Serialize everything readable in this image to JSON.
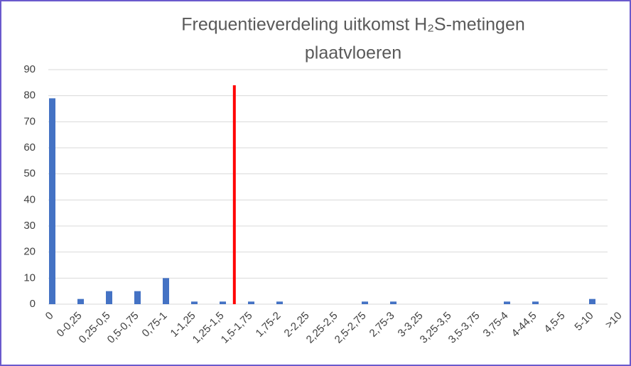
{
  "chart_data": {
    "type": "bar",
    "title": [
      "Frequentieverdeling uitkomst H₂S-metingen",
      "plaatvloeren"
    ],
    "categories": [
      "0",
      "0-0,25",
      "0,25-0,5",
      "0,5-0,75",
      "0,75-1",
      "1-1,25",
      "1,25-1,5",
      "1,5-1,75",
      "1,75-2",
      "2-2,25",
      "2,25-2,5",
      "2,5-2,75",
      "2,75-3",
      "3-3,25",
      "3,25-3,5",
      "3,5-3,75",
      "3,75-4",
      "4-44,5",
      "4,5-5",
      "5-10",
      ">10"
    ],
    "values": [
      79,
      2,
      5,
      5,
      10,
      1,
      1,
      1,
      1,
      0,
      0,
      1,
      1,
      0,
      0,
      0,
      1,
      1,
      0,
      2,
      0
    ],
    "color": "#4472c4",
    "ylim": [
      0,
      90
    ],
    "yticks": [
      0,
      10,
      20,
      30,
      40,
      50,
      60,
      70,
      80,
      90
    ],
    "grid": true,
    "reference_line": {
      "height": 84,
      "color": "#ff0000"
    }
  }
}
